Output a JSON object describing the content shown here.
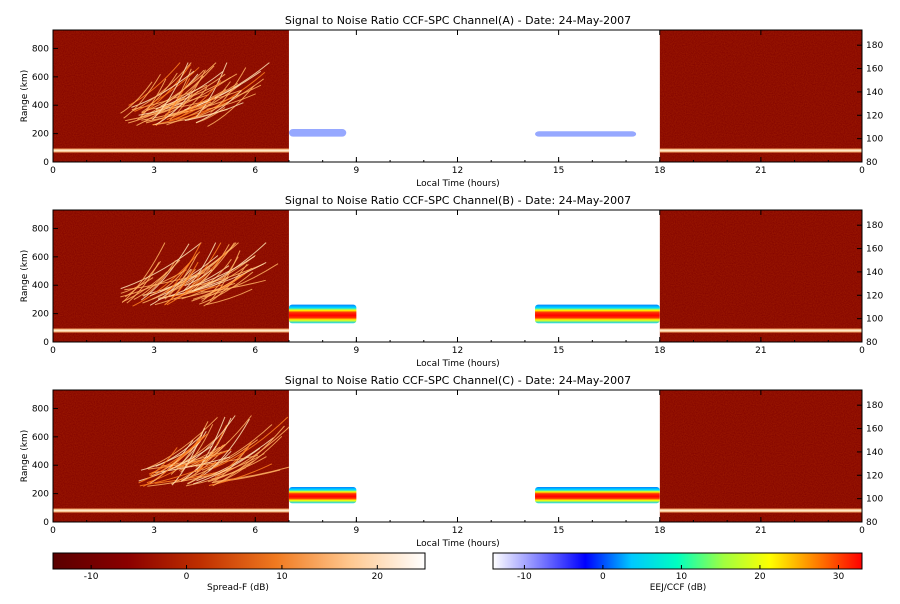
{
  "chart_data": [
    {
      "type": "heatmap",
      "title": "Signal to Noise Ratio CCF-SPC Channel(A) - Date: 24-May-2007",
      "xlabel": "Local Time (hours)",
      "ylabel": "Range (km)",
      "x_ticks": [
        "0",
        "3",
        "6",
        "9",
        "12",
        "15",
        "18",
        "21",
        "0"
      ],
      "y_ticks": [
        "0",
        "200",
        "400",
        "600",
        "800"
      ],
      "y2_ticks": [
        "80",
        "100",
        "120",
        "140",
        "160",
        "180"
      ],
      "xlim": [
        0,
        24
      ],
      "ylim": [
        0,
        930
      ],
      "y2lim": [
        80,
        193
      ],
      "regions": {
        "spread_f_night": [
          [
            0,
            7
          ],
          [
            18,
            24
          ]
        ],
        "eej_day": [
          7,
          18
        ],
        "eej_echoes": [
          {
            "t": [
              7.0,
              8.7
            ],
            "h": [
              100,
              110
            ],
            "level": 0.25
          },
          {
            "t": [
              14.3,
              17.3
            ],
            "h": [
              100,
              108
            ],
            "level": 0.2
          }
        ],
        "spread_f_plume": {
          "t": [
            2.0,
            6.5
          ],
          "h": [
            250,
            700
          ]
        }
      }
    },
    {
      "type": "heatmap",
      "title": "Signal to Noise Ratio CCF-SPC Channel(B) - Date: 24-May-2007",
      "xlabel": "Local Time (hours)",
      "ylabel": "Range (km)",
      "x_ticks": [
        "0",
        "3",
        "6",
        "9",
        "12",
        "15",
        "18",
        "21",
        "0"
      ],
      "y_ticks": [
        "0",
        "200",
        "400",
        "600",
        "800"
      ],
      "y2_ticks": [
        "80",
        "100",
        "120",
        "140",
        "160",
        "180"
      ],
      "xlim": [
        0,
        24
      ],
      "ylim": [
        0,
        930
      ],
      "y2lim": [
        80,
        193
      ],
      "regions": {
        "spread_f_night": [
          [
            0,
            7
          ],
          [
            18,
            24
          ]
        ],
        "eej_day": [
          7,
          18
        ],
        "eej_echoes": [
          {
            "t": [
              7.0,
              9.0
            ],
            "h": [
              96,
              112
            ],
            "level": 0.95
          },
          {
            "t": [
              14.3,
              18.0
            ],
            "h": [
              96,
              112
            ],
            "level": 1.0
          }
        ],
        "spread_f_plume": {
          "t": [
            2.0,
            6.5
          ],
          "h": [
            250,
            700
          ]
        }
      }
    },
    {
      "type": "heatmap",
      "title": "Signal to Noise Ratio CCF-SPC Channel(C) - Date: 24-May-2007",
      "xlabel": "Local Time (hours)",
      "ylabel": "Range (km)",
      "x_ticks": [
        "0",
        "3",
        "6",
        "9",
        "12",
        "15",
        "18",
        "21",
        "0"
      ],
      "y_ticks": [
        "0",
        "200",
        "400",
        "600",
        "800"
      ],
      "y2_ticks": [
        "80",
        "100",
        "120",
        "140",
        "160",
        "180"
      ],
      "xlim": [
        0,
        24
      ],
      "ylim": [
        0,
        930
      ],
      "y2lim": [
        80,
        193
      ],
      "regions": {
        "spread_f_night": [
          [
            0,
            7
          ],
          [
            18,
            24
          ]
        ],
        "eej_day": [
          7,
          18
        ],
        "eej_echoes": [
          {
            "t": [
              7.0,
              9.0
            ],
            "h": [
              96,
              110
            ],
            "level": 0.9
          },
          {
            "t": [
              14.3,
              18.0
            ],
            "h": [
              96,
              110
            ],
            "level": 0.95
          }
        ],
        "spread_f_plume": {
          "t": [
            2.5,
            6.5
          ],
          "h": [
            250,
            750
          ]
        }
      }
    }
  ],
  "colorbars": [
    {
      "label": "Spread-F (dB)",
      "ticks": [
        "-10",
        "0",
        "10",
        "20"
      ],
      "range": [
        -14,
        25
      ],
      "colors": [
        "#5a0000",
        "#8b0000",
        "#c03000",
        "#f07a20",
        "#ffc890",
        "#ffffff"
      ]
    },
    {
      "label": "EEJ/CCF (dB)",
      "ticks": [
        "-10",
        "0",
        "10",
        "20",
        "30"
      ],
      "range": [
        -14,
        33
      ],
      "colors": [
        "#ffffff",
        "#8080ff",
        "#0000ff",
        "#00c8ff",
        "#00ffc0",
        "#a0ff40",
        "#ffff00",
        "#ff8000",
        "#ff0000"
      ]
    }
  ]
}
